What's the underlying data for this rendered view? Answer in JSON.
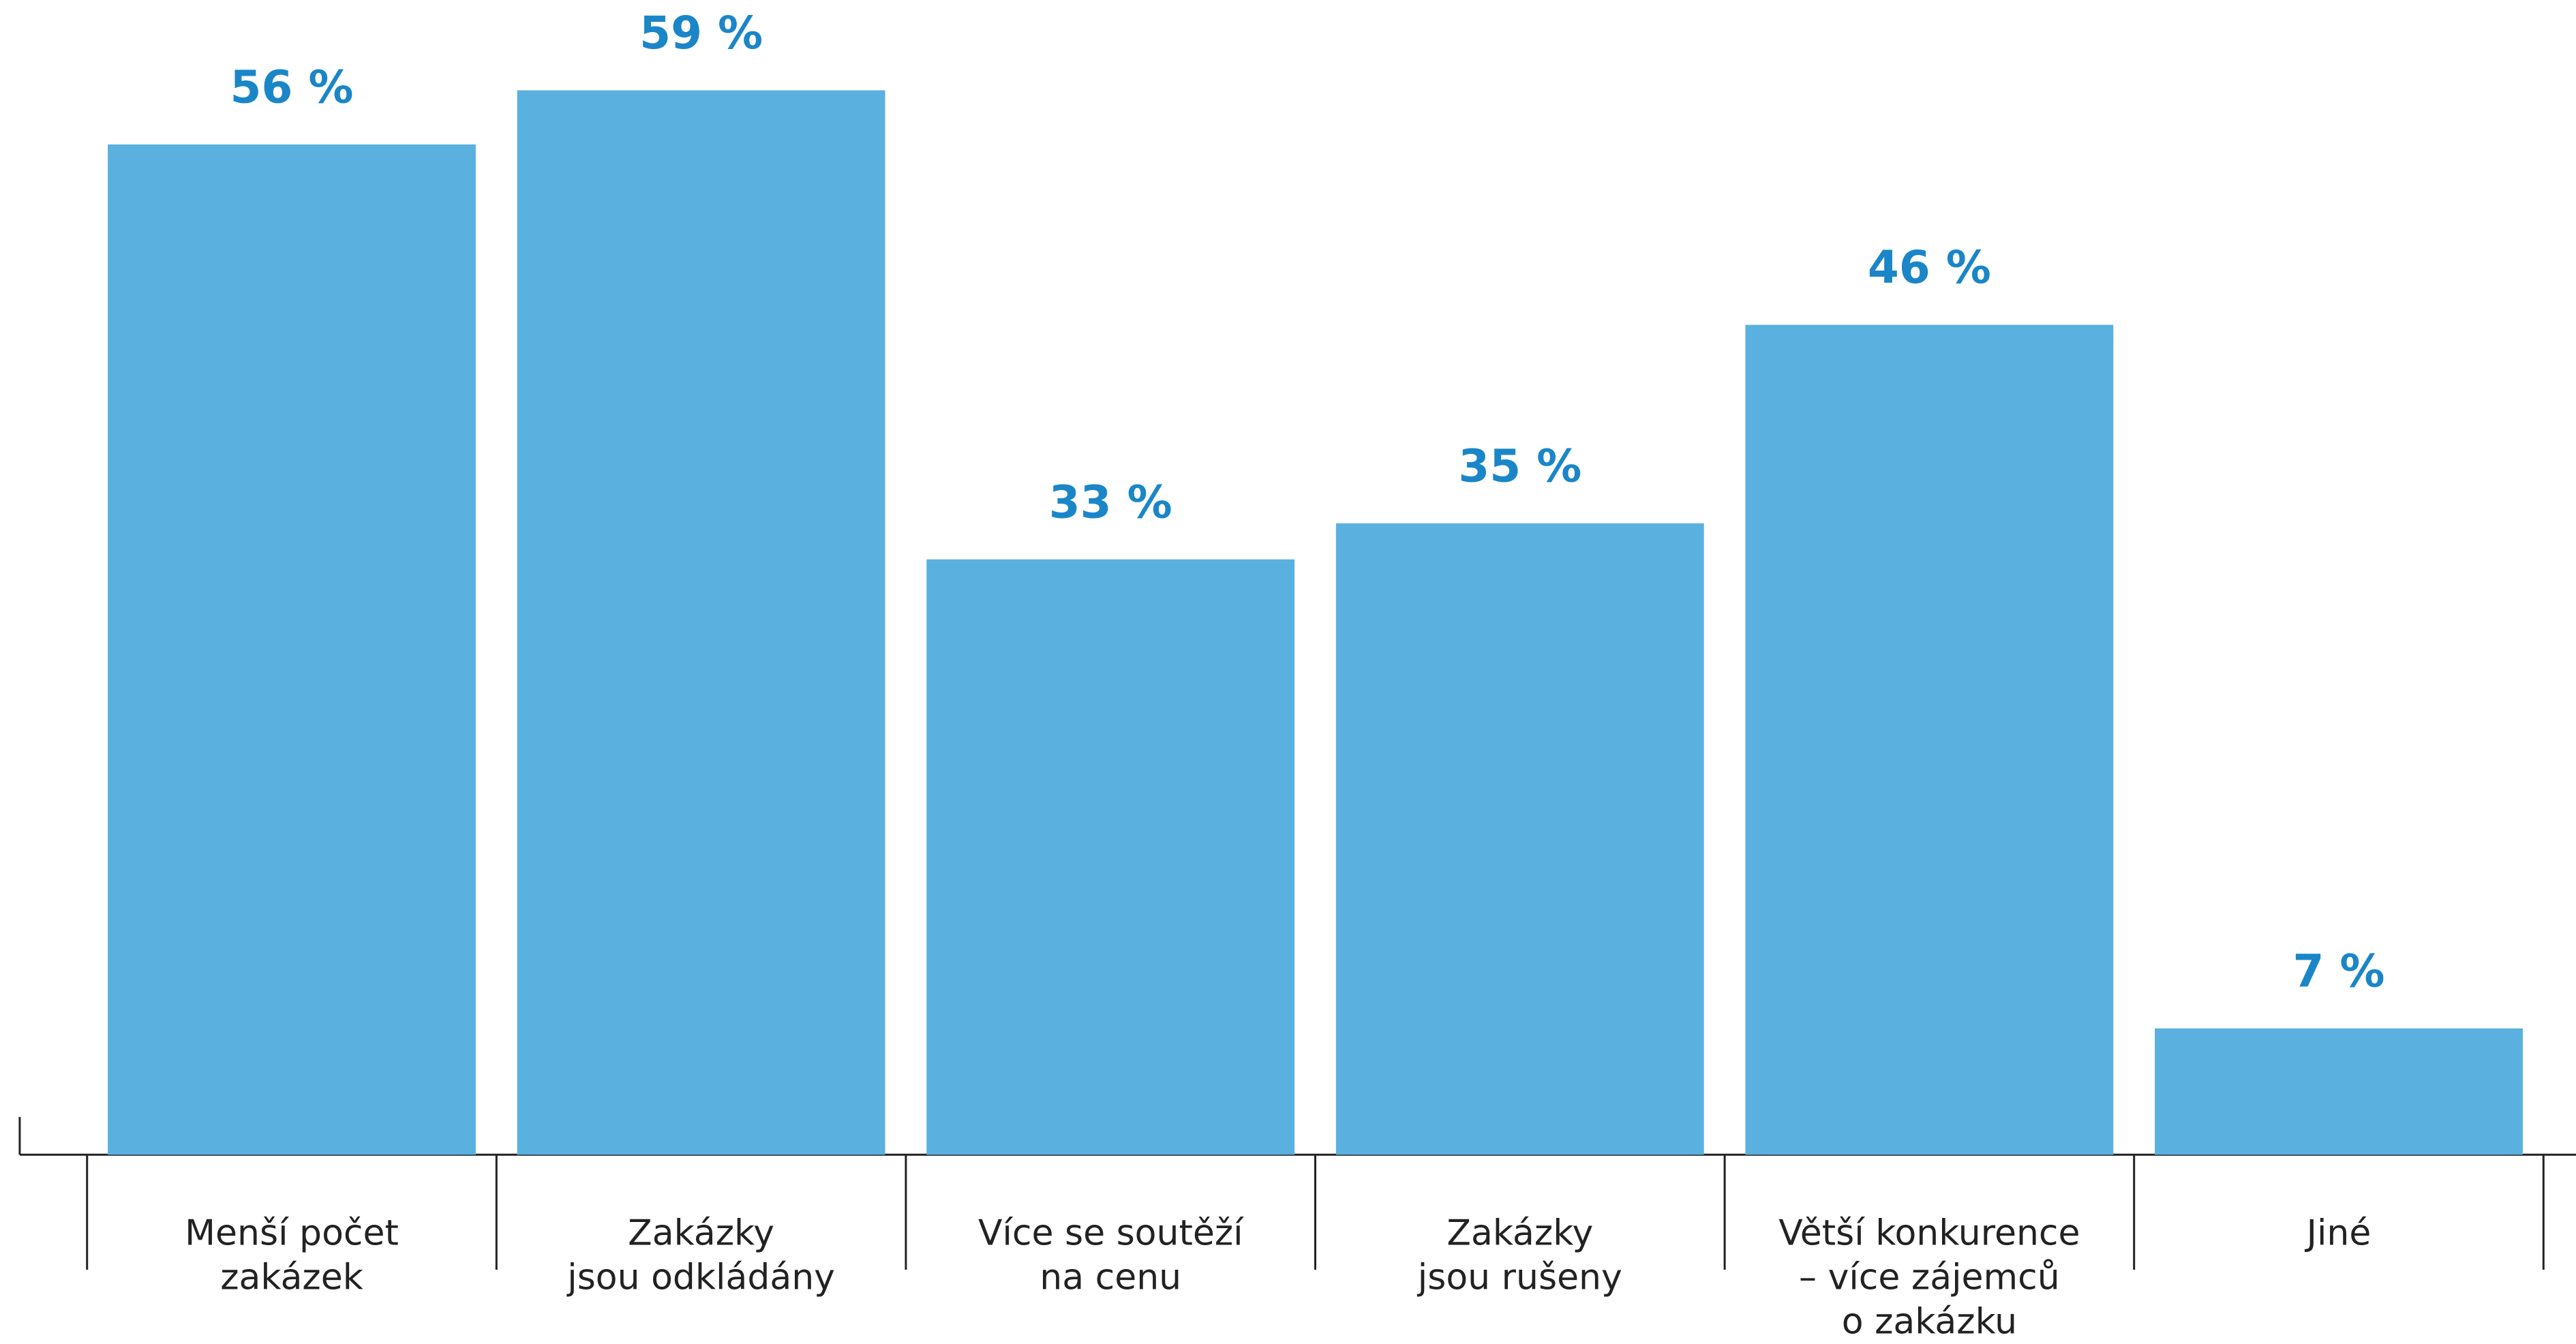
{
  "chart_data": {
    "type": "bar",
    "categories": [
      "Menší počet\nzakázek",
      "Zakázky\njsou odkládány",
      "Více se soutěží\nna cenu",
      "Zakázky\njsou rušeny",
      "Větší konkurence\n– více zájemců\no zakázku",
      "Jiné"
    ],
    "values": [
      56,
      59,
      33,
      35,
      46,
      7
    ],
    "value_labels": [
      "56 %",
      "59 %",
      "33 %",
      "35 %",
      "46 %",
      "7 %"
    ],
    "color": "#5ab1df",
    "label_color": "#1a86c8",
    "ylim": [
      0,
      60
    ]
  }
}
